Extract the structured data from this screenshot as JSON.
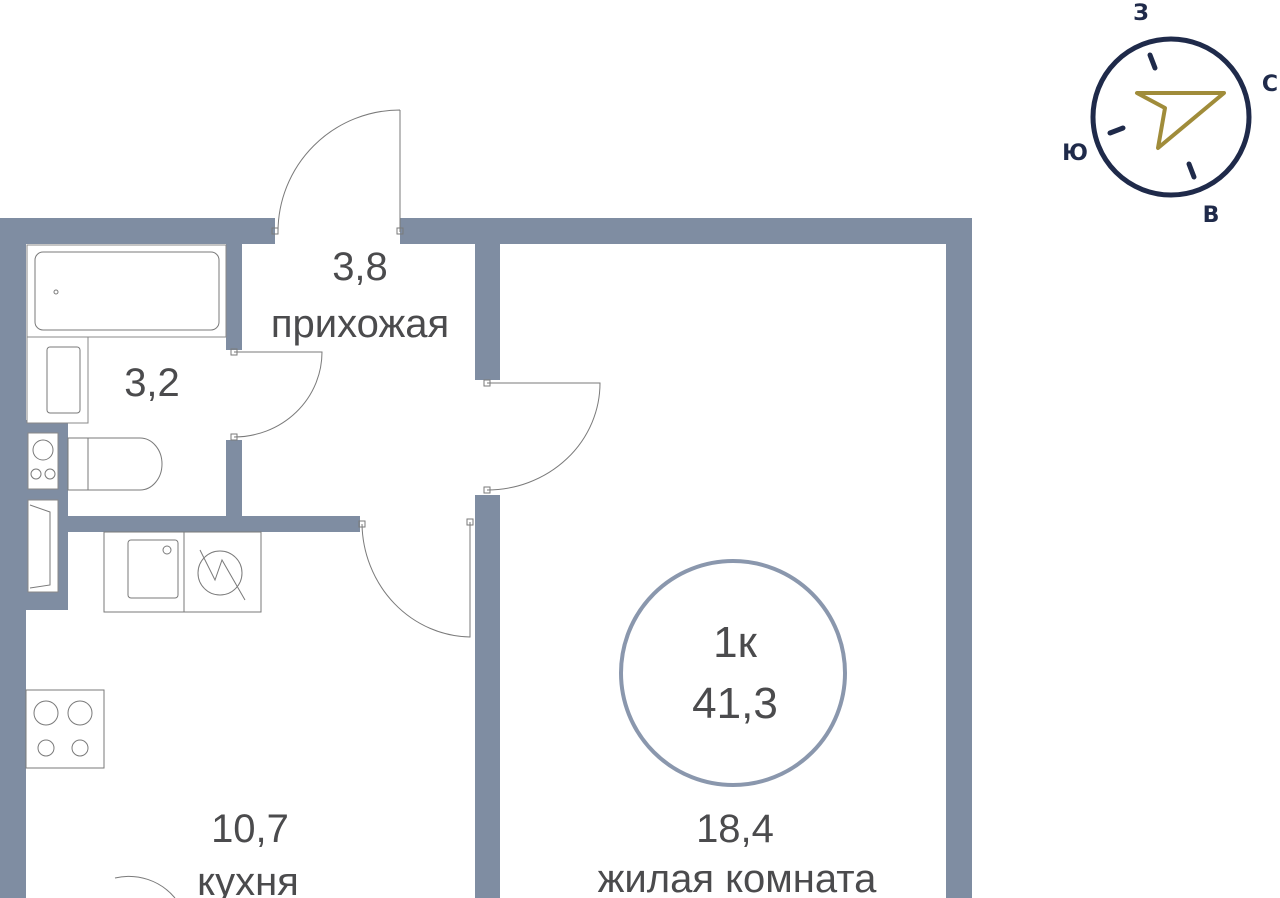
{
  "rooms": {
    "hall": {
      "area": "3,8",
      "name": "прихожая"
    },
    "bath": {
      "area": "3,2"
    },
    "kitchen": {
      "area": "10,7",
      "name": "кухня"
    },
    "living": {
      "area": "18,4",
      "name": "жилая комната"
    }
  },
  "summary": {
    "rooms": "1к",
    "total_area": "41,3"
  },
  "compass": {
    "north": "С",
    "south": "Ю",
    "east": "В",
    "west": "З"
  },
  "colors": {
    "wall": "#7f8da2",
    "compass": "#1f2a4a",
    "arrow": "#a08c3a",
    "badge": "#8a97ad"
  }
}
